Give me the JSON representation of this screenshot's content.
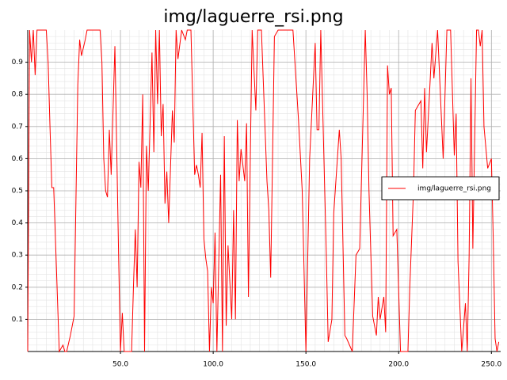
{
  "chart_data": {
    "type": "line",
    "title": "img/laguerre_rsi.png",
    "x": [
      0,
      1,
      2,
      3,
      4,
      5,
      6,
      7,
      8,
      9,
      10,
      11,
      12,
      13,
      14,
      17,
      19,
      20,
      21,
      23,
      25,
      27,
      28,
      29,
      31,
      32,
      39,
      40,
      41,
      42,
      43,
      44,
      45,
      47,
      49,
      50,
      51,
      52,
      56,
      57,
      58,
      59,
      60,
      61,
      62,
      63,
      64,
      65,
      67,
      68,
      69,
      70,
      71,
      72,
      73,
      74,
      75,
      76,
      78,
      79,
      80,
      81,
      83,
      85,
      86,
      88,
      90,
      91,
      92,
      93,
      94,
      95,
      96,
      97,
      98,
      99,
      100,
      101,
      102,
      104,
      105,
      106,
      107,
      108,
      110,
      111,
      112,
      113,
      114,
      115,
      117,
      118,
      119,
      120,
      121,
      123,
      124,
      126,
      129,
      130,
      131,
      132,
      133,
      135,
      143,
      146,
      148,
      150,
      152,
      155,
      156,
      157,
      158,
      161,
      162,
      164,
      165,
      168,
      169,
      171,
      172,
      175,
      177,
      179,
      182,
      183,
      184,
      186,
      188,
      189,
      190,
      192,
      193,
      194,
      195,
      196,
      197,
      199,
      201,
      205,
      206,
      208,
      209,
      212,
      213,
      214,
      215,
      216,
      218,
      219,
      221,
      224,
      226,
      228,
      230,
      231,
      232,
      234,
      236,
      237,
      238,
      239,
      240,
      242,
      243,
      244,
      245,
      246,
      248,
      250,
      251,
      252,
      253,
      254
    ],
    "series": [
      {
        "name": "img/laguerre_rsi.png",
        "color": "#ff0000",
        "values": [
          0,
          1,
          0.9,
          1,
          0.86,
          1,
          1,
          1,
          1,
          1,
          1,
          0.9,
          0.7,
          0.51,
          0.51,
          0,
          0.02,
          0,
          0,
          0.05,
          0.11,
          0.83,
          0.97,
          0.92,
          0.97,
          1,
          1,
          0.9,
          0.6,
          0.5,
          0.48,
          0.69,
          0.55,
          0.95,
          0.3,
          0,
          0.12,
          0,
          0,
          0.2,
          0.38,
          0.2,
          0.59,
          0.51,
          0.8,
          0,
          0.64,
          0.5,
          0.93,
          0.62,
          1,
          0.77,
          1,
          0.67,
          0.77,
          0.46,
          0.56,
          0.4,
          0.75,
          0.65,
          1,
          0.91,
          1,
          0.97,
          1,
          1,
          0.55,
          0.58,
          0.55,
          0.51,
          0.68,
          0.35,
          0.29,
          0.25,
          0,
          0.2,
          0.15,
          0.37,
          0,
          0.55,
          0,
          0.67,
          0.08,
          0.33,
          0.1,
          0.44,
          0.1,
          0.72,
          0.53,
          0.63,
          0.53,
          0.71,
          0.17,
          0.6,
          1,
          0.75,
          1,
          1,
          0.53,
          0.44,
          0.23,
          0.6,
          0.98,
          1,
          1,
          0.72,
          0.5,
          0,
          0.6,
          0.96,
          0.69,
          0.69,
          1,
          0.3,
          0.03,
          0.1,
          0.43,
          0.69,
          0.6,
          0.05,
          0.04,
          0,
          0.3,
          0.32,
          1,
          0.8,
          0.5,
          0.11,
          0.05,
          0.17,
          0.1,
          0.17,
          0.06,
          0.89,
          0.8,
          0.82,
          0.36,
          0.38,
          0,
          0,
          0.2,
          0.5,
          0.75,
          0.78,
          0.57,
          0.82,
          0.62,
          0.73,
          0.96,
          0.85,
          1,
          0.6,
          1,
          1,
          0.61,
          0.74,
          0.28,
          0,
          0.15,
          0,
          0.3,
          0.85,
          0.32,
          1,
          1,
          0.95,
          1,
          0.7,
          0.57,
          0.6,
          0.35,
          0.04,
          0,
          0.03
        ]
      }
    ],
    "xlim": [
      0,
      255
    ],
    "ylim": [
      0,
      1
    ],
    "xticks": [
      {
        "value": 50,
        "label": "50.0"
      },
      {
        "value": 100,
        "label": "100.0"
      },
      {
        "value": 150,
        "label": "150.0"
      },
      {
        "value": 200,
        "label": "200.0"
      },
      {
        "value": 250,
        "label": "250.0"
      }
    ],
    "yticks": [
      0.1,
      0.2,
      0.3,
      0.4,
      0.5,
      0.6,
      0.7,
      0.8,
      0.9
    ],
    "grid": true,
    "legend": "center right"
  }
}
